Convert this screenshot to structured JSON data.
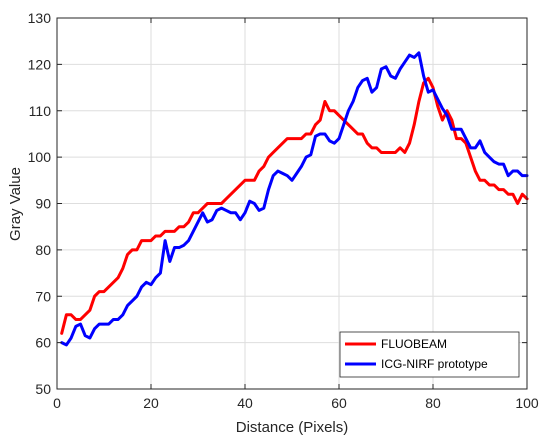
{
  "chart_data": {
    "type": "line",
    "xlabel": "Distance (Pixels)",
    "ylabel": "Gray Value",
    "xlim": [
      0,
      100
    ],
    "ylim": [
      50,
      130
    ],
    "xticks": [
      0,
      20,
      40,
      60,
      80,
      100
    ],
    "yticks": [
      50,
      60,
      70,
      80,
      90,
      100,
      110,
      120,
      130
    ],
    "grid": true,
    "legend_position": "bottom-right",
    "series": [
      {
        "name": "FLUOBEAM",
        "color": "#ff0000",
        "x": [
          1,
          2,
          3,
          4,
          5,
          6,
          7,
          8,
          9,
          10,
          11,
          12,
          13,
          14,
          15,
          16,
          17,
          18,
          19,
          20,
          21,
          22,
          23,
          24,
          25,
          26,
          27,
          28,
          29,
          30,
          31,
          32,
          33,
          34,
          35,
          36,
          37,
          38,
          39,
          40,
          41,
          42,
          43,
          44,
          45,
          46,
          47,
          48,
          49,
          50,
          51,
          52,
          53,
          54,
          55,
          56,
          57,
          58,
          59,
          60,
          61,
          62,
          63,
          64,
          65,
          66,
          67,
          68,
          69,
          70,
          71,
          72,
          73,
          74,
          75,
          76,
          77,
          78,
          79,
          80,
          81,
          82,
          83,
          84,
          85,
          86,
          87,
          88,
          89,
          90,
          91,
          92,
          93,
          94,
          95,
          96,
          97,
          98,
          99,
          100
        ],
        "y": [
          62,
          66,
          66,
          65,
          65,
          66,
          67,
          70,
          71,
          71,
          72,
          73,
          74,
          76,
          79,
          80,
          80,
          82,
          82,
          82,
          83,
          83,
          84,
          84,
          84,
          85,
          85,
          86,
          88,
          88,
          89,
          90,
          90,
          90,
          90,
          91,
          92,
          93,
          94,
          95,
          95,
          95,
          97,
          98,
          100,
          101,
          102,
          103,
          104,
          104,
          104,
          104,
          105,
          105,
          107,
          108,
          112,
          110,
          110,
          109,
          108,
          107,
          106,
          105,
          105,
          103,
          102,
          102,
          101,
          101,
          101,
          101,
          102,
          101,
          103,
          107,
          112,
          116,
          117,
          115,
          111,
          108,
          110,
          108,
          104,
          104,
          103,
          100,
          97,
          95,
          95,
          94,
          94,
          93,
          93,
          92,
          92,
          90,
          92,
          91
        ]
      },
      {
        "name": "ICG-NIRF prototype",
        "color": "#0000ff",
        "x": [
          1,
          2,
          3,
          4,
          5,
          6,
          7,
          8,
          9,
          10,
          11,
          12,
          13,
          14,
          15,
          16,
          17,
          18,
          19,
          20,
          21,
          22,
          23,
          24,
          25,
          26,
          27,
          28,
          29,
          30,
          31,
          32,
          33,
          34,
          35,
          36,
          37,
          38,
          39,
          40,
          41,
          42,
          43,
          44,
          45,
          46,
          47,
          48,
          49,
          50,
          51,
          52,
          53,
          54,
          55,
          56,
          57,
          58,
          59,
          60,
          61,
          62,
          63,
          64,
          65,
          66,
          67,
          68,
          69,
          70,
          71,
          72,
          73,
          74,
          75,
          76,
          77,
          78,
          79,
          80,
          81,
          82,
          83,
          84,
          85,
          86,
          87,
          88,
          89,
          90,
          91,
          92,
          93,
          94,
          95,
          96,
          97,
          98,
          99,
          100
        ],
        "y": [
          60,
          59.5,
          61,
          63.5,
          64,
          61.5,
          61,
          63,
          64,
          64,
          64,
          65,
          65,
          66,
          68,
          69,
          70,
          72,
          73,
          72.5,
          74,
          75,
          82,
          77.5,
          80.5,
          80.5,
          81,
          82,
          84,
          86,
          88,
          86,
          86.5,
          88.5,
          89,
          88.5,
          88,
          88,
          86.5,
          88,
          90.5,
          90,
          88.5,
          89,
          93,
          96,
          97,
          96.5,
          96,
          95,
          96.5,
          98,
          100,
          100.5,
          104.5,
          105,
          105,
          103.5,
          103,
          104,
          107,
          110,
          112,
          115,
          116.5,
          117,
          114,
          115,
          119,
          119.5,
          117.5,
          117,
          119,
          120.5,
          122,
          121.5,
          122.5,
          117.5,
          114,
          114.5,
          112.5,
          110.5,
          109,
          106,
          106,
          106,
          104,
          102,
          102,
          103.5,
          101,
          100,
          99,
          98.5,
          98.5,
          96,
          97,
          97,
          96,
          96
        ]
      }
    ]
  }
}
